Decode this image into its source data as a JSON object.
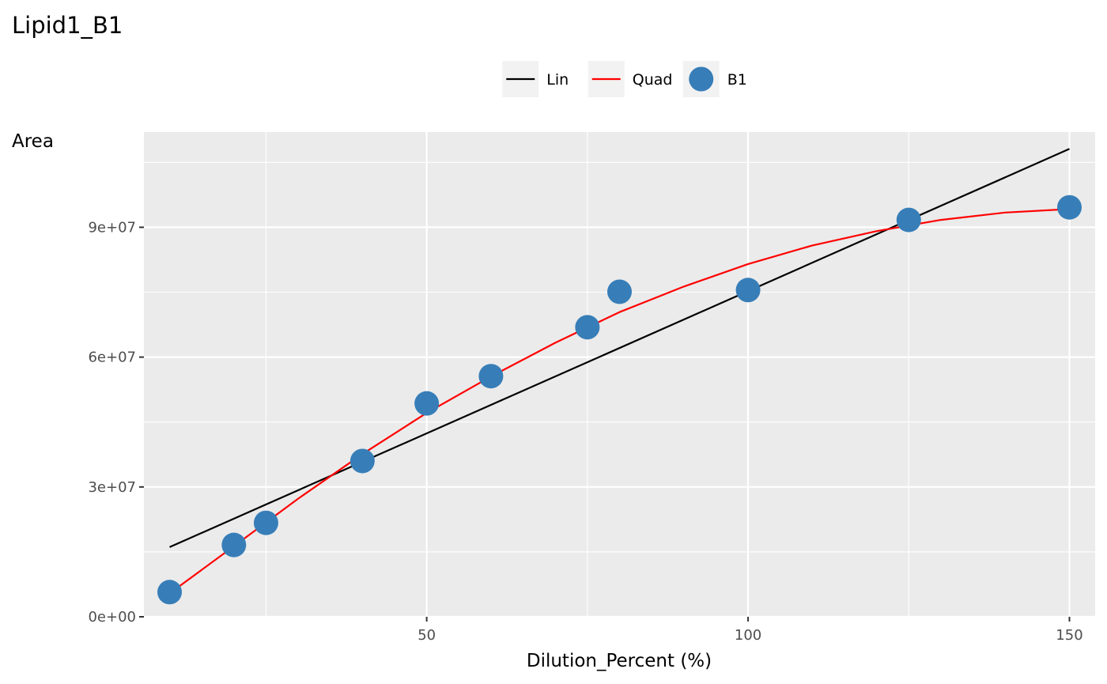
{
  "chart_data": {
    "type": "scatter",
    "title": "Lipid1_B1",
    "xlabel": "Dilution_Percent (%)",
    "ylabel": "Area",
    "xlim": [
      6,
      154
    ],
    "ylim": [
      0,
      112000000
    ],
    "x_ticks": [
      50,
      100,
      150
    ],
    "x_tick_labels": [
      "50",
      "100",
      "150"
    ],
    "y_ticks": [
      0,
      30000000,
      60000000,
      90000000
    ],
    "y_tick_labels": [
      "0e+00",
      "3e+07",
      "6e+07",
      "9e+07"
    ],
    "grid": true,
    "legend_position": "top",
    "legend": [
      {
        "label": "Lin",
        "kind": "line",
        "color": "#000000"
      },
      {
        "label": "Quad",
        "kind": "line",
        "color": "#FF0000"
      },
      {
        "label": "B1",
        "kind": "point",
        "color": "#377EB8"
      }
    ],
    "series": [
      {
        "name": "B1",
        "kind": "point",
        "color": "#377EB8",
        "x": [
          10,
          20,
          25,
          40,
          50,
          60,
          75,
          80,
          100,
          125,
          150
        ],
        "y": [
          5700000,
          16600000,
          21700000,
          36000000,
          49300000,
          55600000,
          66900000,
          75100000,
          75500000,
          91700000,
          94600000
        ]
      },
      {
        "name": "Lin",
        "kind": "line",
        "color": "#000000",
        "x": [
          10,
          150
        ],
        "y": [
          16100000,
          108100000
        ]
      },
      {
        "name": "Quad",
        "kind": "line",
        "color": "#FF0000",
        "x": [
          10,
          20,
          30,
          40,
          50,
          60,
          70,
          80,
          90,
          100,
          110,
          120,
          130,
          140,
          150
        ],
        "y": [
          5400000,
          16300000,
          27300000,
          37600000,
          47100000,
          55500000,
          63300000,
          70400000,
          76300000,
          81500000,
          85800000,
          89100000,
          91700000,
          93400000,
          94200000
        ]
      }
    ]
  }
}
